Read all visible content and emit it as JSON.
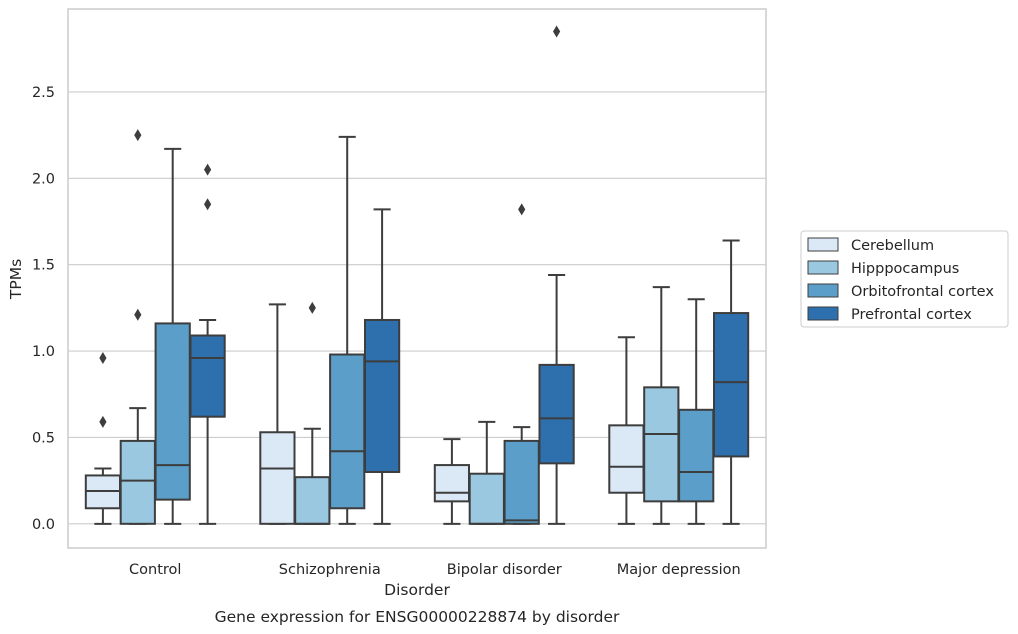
{
  "chart_data": {
    "type": "box",
    "title": "",
    "caption": "Gene expression for ENSG00000228874 by disorder",
    "xlabel": "Disorder",
    "ylabel": "TPMs",
    "ylim": [
      -0.14,
      2.98
    ],
    "yticks": [
      0.0,
      0.5,
      1.0,
      1.5,
      2.0,
      2.5
    ],
    "ytick_labels": [
      "0.0",
      "0.5",
      "1.0",
      "1.5",
      "2.0",
      "2.5"
    ],
    "grid": "horizontal",
    "legend_position": "right",
    "categories": [
      "Control",
      "Schizophrenia",
      "Bipolar disorder",
      "Major depression"
    ],
    "series": [
      {
        "name": "Cerebellum",
        "color": "#dbe9f6",
        "boxes": [
          {
            "whisker_low": 0.0,
            "q1": 0.09,
            "median": 0.19,
            "q3": 0.28,
            "whisker_high": 0.32,
            "outliers": [
              0.59,
              0.96
            ]
          },
          {
            "whisker_low": 0.0,
            "q1": 0.0,
            "median": 0.32,
            "q3": 0.53,
            "whisker_high": 1.27,
            "outliers": []
          },
          {
            "whisker_low": 0.0,
            "q1": 0.13,
            "median": 0.18,
            "q3": 0.34,
            "whisker_high": 0.49,
            "outliers": []
          },
          {
            "whisker_low": 0.0,
            "q1": 0.18,
            "median": 0.33,
            "q3": 0.57,
            "whisker_high": 1.08,
            "outliers": []
          }
        ]
      },
      {
        "name": "Hipppocampus",
        "color": "#9ac8e0",
        "boxes": [
          {
            "whisker_low": 0.0,
            "q1": 0.0,
            "median": 0.25,
            "q3": 0.48,
            "whisker_high": 0.67,
            "outliers": [
              1.21,
              2.25
            ]
          },
          {
            "whisker_low": 0.0,
            "q1": 0.0,
            "median": 0.0,
            "q3": 0.27,
            "whisker_high": 0.55,
            "outliers": [
              1.25
            ]
          },
          {
            "whisker_low": 0.0,
            "q1": 0.0,
            "median": 0.0,
            "q3": 0.29,
            "whisker_high": 0.59,
            "outliers": []
          },
          {
            "whisker_low": 0.0,
            "q1": 0.13,
            "median": 0.52,
            "q3": 0.79,
            "whisker_high": 1.37,
            "outliers": []
          }
        ]
      },
      {
        "name": "Orbitofrontal cortex",
        "color": "#5a9ec9",
        "boxes": [
          {
            "whisker_low": 0.0,
            "q1": 0.14,
            "median": 0.34,
            "q3": 1.16,
            "whisker_high": 2.17,
            "outliers": []
          },
          {
            "whisker_low": 0.0,
            "q1": 0.09,
            "median": 0.42,
            "q3": 0.98,
            "whisker_high": 2.24,
            "outliers": []
          },
          {
            "whisker_low": 0.0,
            "q1": 0.0,
            "median": 0.02,
            "q3": 0.48,
            "whisker_high": 0.56,
            "outliers": [
              1.82
            ]
          },
          {
            "whisker_low": 0.0,
            "q1": 0.13,
            "median": 0.3,
            "q3": 0.66,
            "whisker_high": 1.3,
            "outliers": []
          }
        ]
      },
      {
        "name": "Prefrontal cortex",
        "color": "#2e6fad",
        "boxes": [
          {
            "whisker_low": 0.0,
            "q1": 0.62,
            "median": 0.96,
            "q3": 1.09,
            "whisker_high": 1.18,
            "outliers": [
              1.85,
              2.05
            ]
          },
          {
            "whisker_low": 0.0,
            "q1": 0.3,
            "median": 0.94,
            "q3": 1.18,
            "whisker_high": 1.82,
            "outliers": []
          },
          {
            "whisker_low": 0.0,
            "q1": 0.35,
            "median": 0.61,
            "q3": 0.92,
            "whisker_high": 1.44,
            "outliers": [
              2.85
            ]
          },
          {
            "whisker_low": 0.0,
            "q1": 0.39,
            "median": 0.82,
            "q3": 1.22,
            "whisker_high": 1.64,
            "outliers": []
          }
        ]
      }
    ]
  }
}
